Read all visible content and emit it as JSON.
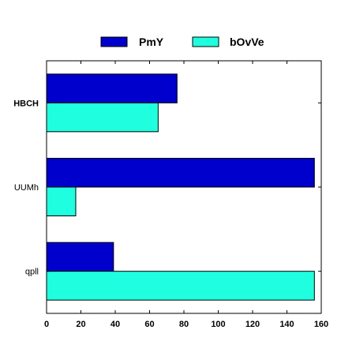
{
  "chart_data": {
    "type": "bar",
    "orientation": "horizontal",
    "categories": [
      "HBCH",
      "UUMh",
      "qpll"
    ],
    "category_bold": [
      true,
      false,
      false
    ],
    "series": [
      {
        "name": "PmY",
        "values": [
          76,
          156,
          39
        ],
        "color": "#0000cc"
      },
      {
        "name": "bOvVe",
        "values": [
          65,
          17,
          156
        ],
        "color": "#1fffe0"
      }
    ],
    "xlim": [
      0,
      160
    ],
    "xticks": [
      0,
      20,
      40,
      60,
      80,
      100,
      120,
      140,
      160
    ],
    "legend": "top-center",
    "grid": false,
    "title": "",
    "xlabel": "",
    "ylabel": ""
  }
}
